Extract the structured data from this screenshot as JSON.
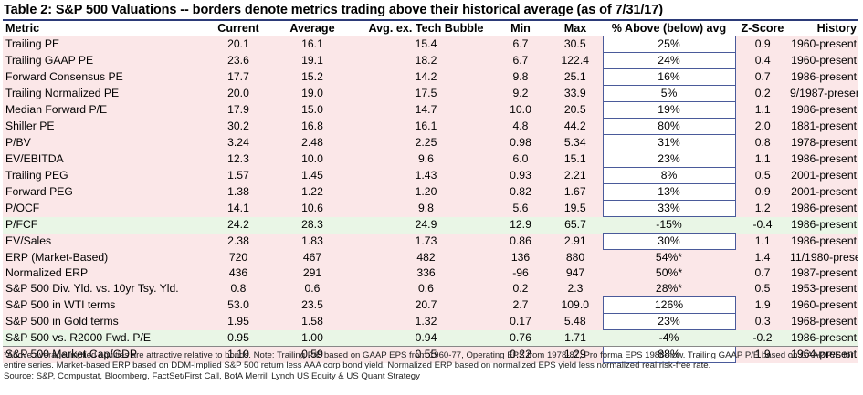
{
  "title": "Table 2: S&P 500 Valuations -- borders denote metrics trading above their historical average (as of 7/31/17)",
  "columns": [
    "Metric",
    "Current",
    "Average",
    "Avg. ex. Tech Bubble",
    "Min",
    "Max",
    "% Above (below) avg",
    "Z-Score",
    "History"
  ],
  "rows": [
    {
      "metric": "Trailing PE",
      "current": "20.1",
      "average": "16.1",
      "avg_ex": "15.4",
      "min": "6.7",
      "max": "30.5",
      "pct": "25%",
      "z": "0.9",
      "history": "1960-present",
      "shade": "pink",
      "boxed": true
    },
    {
      "metric": "Trailing GAAP PE",
      "current": "23.6",
      "average": "19.1",
      "avg_ex": "18.2",
      "min": "6.7",
      "max": "122.4",
      "pct": "24%",
      "z": "0.4",
      "history": "1960-present",
      "shade": "pink",
      "boxed": true
    },
    {
      "metric": "Forward Consensus PE",
      "current": "17.7",
      "average": "15.2",
      "avg_ex": "14.2",
      "min": "9.8",
      "max": "25.1",
      "pct": "16%",
      "z": "0.7",
      "history": "1986-present",
      "shade": "pink",
      "boxed": true
    },
    {
      "metric": "Trailing Normalized PE",
      "current": "20.0",
      "average": "19.0",
      "avg_ex": "17.5",
      "min": "9.2",
      "max": "33.9",
      "pct": "5%",
      "z": "0.2",
      "history": "9/1987-present",
      "shade": "pink",
      "boxed": true
    },
    {
      "metric": "Median Forward P/E",
      "current": "17.9",
      "average": "15.0",
      "avg_ex": "14.7",
      "min": "10.0",
      "max": "20.5",
      "pct": "19%",
      "z": "1.1",
      "history": "1986-present",
      "shade": "pink",
      "boxed": true
    },
    {
      "metric": "Shiller PE",
      "current": "30.2",
      "average": "16.8",
      "avg_ex": "16.1",
      "min": "4.8",
      "max": "44.2",
      "pct": "80%",
      "z": "2.0",
      "history": "1881-present",
      "shade": "pink",
      "boxed": true
    },
    {
      "metric": "P/BV",
      "current": "3.24",
      "average": "2.48",
      "avg_ex": "2.25",
      "min": "0.98",
      "max": "5.34",
      "pct": "31%",
      "z": "0.8",
      "history": "1978-present",
      "shade": "pink",
      "boxed": true
    },
    {
      "metric": "EV/EBITDA",
      "current": "12.3",
      "average": "10.0",
      "avg_ex": "9.6",
      "min": "6.0",
      "max": "15.1",
      "pct": "23%",
      "z": "1.1",
      "history": "1986-present",
      "shade": "pink",
      "boxed": true
    },
    {
      "metric": "Trailing PEG",
      "current": "1.57",
      "average": "1.45",
      "avg_ex": "1.43",
      "min": "0.93",
      "max": "2.21",
      "pct": "8%",
      "z": "0.5",
      "history": "2001-present",
      "shade": "pink",
      "boxed": true
    },
    {
      "metric": "Forward PEG",
      "current": "1.38",
      "average": "1.22",
      "avg_ex": "1.20",
      "min": "0.82",
      "max": "1.67",
      "pct": "13%",
      "z": "0.9",
      "history": "2001-present",
      "shade": "pink",
      "boxed": true
    },
    {
      "metric": "P/OCF",
      "current": "14.1",
      "average": "10.6",
      "avg_ex": "9.8",
      "min": "5.6",
      "max": "19.5",
      "pct": "33%",
      "z": "1.2",
      "history": "1986-present",
      "shade": "pink",
      "boxed": true
    },
    {
      "metric": "P/FCF",
      "current": "24.2",
      "average": "28.3",
      "avg_ex": "24.9",
      "min": "12.9",
      "max": "65.7",
      "pct": "-15%",
      "z": "-0.4",
      "history": "1986-present",
      "shade": "green",
      "boxed": false
    },
    {
      "metric": "EV/Sales",
      "current": "2.38",
      "average": "1.83",
      "avg_ex": "1.73",
      "min": "0.86",
      "max": "2.91",
      "pct": "30%",
      "z": "1.1",
      "history": "1986-present",
      "shade": "pink",
      "boxed": true
    },
    {
      "metric": "ERP (Market-Based)",
      "current": "720",
      "average": "467",
      "avg_ex": "482",
      "min": "136",
      "max": "880",
      "pct": "54%*",
      "z": "1.4",
      "history": "11/1980-present",
      "shade": "pink",
      "boxed": false
    },
    {
      "metric": "Normalized ERP",
      "current": "436",
      "average": "291",
      "avg_ex": "336",
      "min": "-96",
      "max": "947",
      "pct": "50%*",
      "z": "0.7",
      "history": "1987-present",
      "shade": "pink",
      "boxed": false
    },
    {
      "metric": "S&P 500 Div. Yld. vs. 10yr Tsy. Yld.",
      "current": "0.8",
      "average": "0.6",
      "avg_ex": "0.6",
      "min": "0.2",
      "max": "2.3",
      "pct": "28%*",
      "z": "0.5",
      "history": "1953-present",
      "shade": "pink",
      "boxed": false
    },
    {
      "metric": "S&P 500 in WTI terms",
      "current": "53.0",
      "average": "23.5",
      "avg_ex": "20.7",
      "min": "2.7",
      "max": "109.0",
      "pct": "126%",
      "z": "1.9",
      "history": "1960-present",
      "shade": "pink",
      "boxed": true
    },
    {
      "metric": "S&P 500 in Gold terms",
      "current": "1.95",
      "average": "1.58",
      "avg_ex": "1.32",
      "min": "0.17",
      "max": "5.48",
      "pct": "23%",
      "z": "0.3",
      "history": "1968-present",
      "shade": "pink",
      "boxed": true
    },
    {
      "metric": "S&P 500 vs. R2000 Fwd. P/E",
      "current": "0.95",
      "average": "1.00",
      "avg_ex": "0.94",
      "min": "0.76",
      "max": "1.71",
      "pct": "-4%",
      "z": "-0.2",
      "history": "1986-present",
      "shade": "green",
      "boxed": false
    },
    {
      "metric": "S&P 500 Market Cap/GDP",
      "current": "1.10",
      "average": "0.59",
      "avg_ex": "0.55",
      "min": "0.22",
      "max": "1.29",
      "pct": "88%",
      "z": "1.9",
      "history": "1964-present",
      "shade": "pink",
      "boxed": true
    }
  ],
  "footnote": "*Above average implied equities are attractive relative to bonds. Note: Trailing P/E based on GAAP EPS from 1960-77, Operating EPS from 1978-87, Pro forma EPS 1988-now. Trailing GAAP P/E based on GAAP P/E for entire series. Market-based ERP based on DDM-implied S&P 500 return less AAA corp bond yield. Normalized ERP based on normalized EPS yield less normalized real risk-free rate.",
  "source": "Source: S&P, Compustat, Bloomberg, FactSet/First Call, BofA Merrill Lynch US Equity & US Quant Strategy"
}
